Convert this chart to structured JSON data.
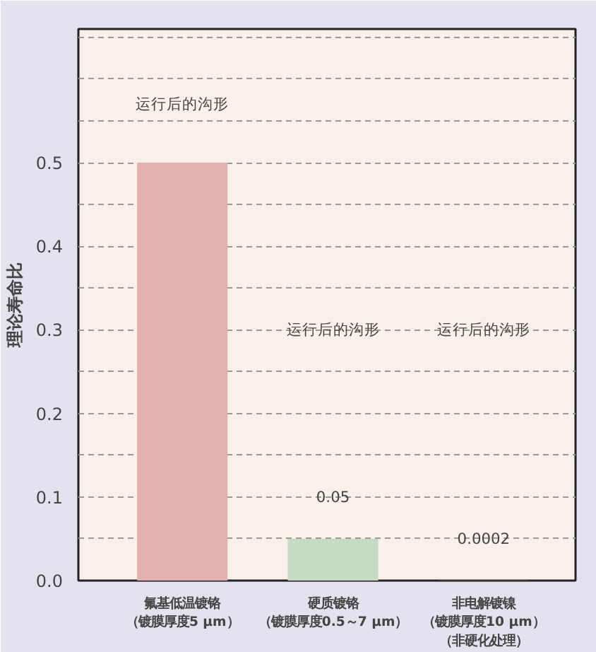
{
  "chart_data": {
    "type": "bar",
    "categories": [
      "氟基低温镀铬（镀膜厚度5 μm）",
      "硬质镀铬（镀膜厚度0.5～7 μm）",
      "非电解镀镍（镀膜厚度10 μm）（非硬化处理）"
    ],
    "values": [
      0.5,
      0.05,
      0.0002
    ],
    "colors": [
      "#e2b1ad",
      "#c6dcc2",
      "#d8b84a"
    ],
    "value_labels": [
      null,
      "0.05",
      "0.0002"
    ],
    "ylabel": "理论寿命比",
    "ylim": [
      0,
      0.66
    ],
    "yticks": [
      {
        "value": 0,
        "label": "0.0"
      },
      {
        "value": 0.05,
        "label": null
      },
      0.1,
      {
        "value": 0.15,
        "label": null
      },
      0.2,
      {
        "value": 0.25,
        "label": null
      },
      0.3,
      {
        "value": 0.35,
        "label": null
      },
      0.4,
      {
        "value": 0.45,
        "label": null
      },
      0.5,
      {
        "value": 0.55,
        "label": null
      },
      {
        "value": 0.6,
        "label": null
      },
      {
        "value": 0.65,
        "label": null
      }
    ],
    "grid": "y",
    "annotations": [
      "运行后的沟形",
      "运行后的沟形",
      "运行后的沟形"
    ]
  }
}
